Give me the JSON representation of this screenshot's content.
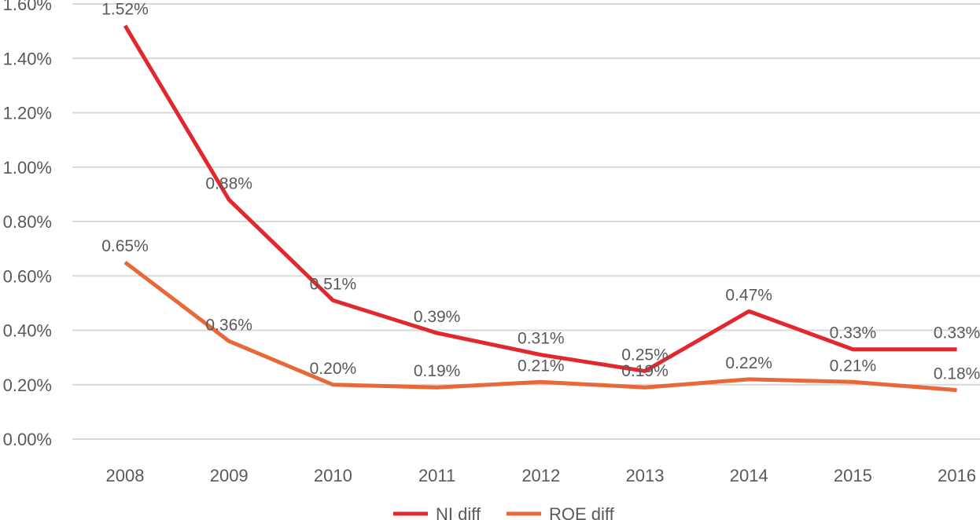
{
  "chart_data": {
    "type": "line",
    "categories": [
      "2008",
      "2009",
      "2010",
      "2011",
      "2012",
      "2013",
      "2014",
      "2015",
      "2016"
    ],
    "series": [
      {
        "name": "NI diff",
        "color": "#e0282e",
        "values": [
          1.52,
          0.88,
          0.51,
          0.39,
          0.31,
          0.25,
          0.47,
          0.33,
          0.33
        ],
        "labels": [
          "1.52%",
          "0.88%",
          "0.51%",
          "0.39%",
          "0.31%",
          "0.25%",
          "0.47%",
          "0.33%",
          "0.33%"
        ]
      },
      {
        "name": "ROE diff",
        "color": "#e8683a",
        "values": [
          0.65,
          0.36,
          0.2,
          0.19,
          0.21,
          0.19,
          0.22,
          0.21,
          0.18
        ],
        "labels": [
          "0.65%",
          "0.36%",
          "0.20%",
          "0.19%",
          "0.21%",
          "0.19%",
          "0.22%",
          "0.21%",
          "0.18%"
        ]
      }
    ],
    "ylim": [
      0,
      1.6
    ],
    "yticks": [
      0,
      0.2,
      0.4,
      0.6,
      0.8,
      1.0,
      1.2,
      1.4,
      1.6
    ],
    "ytick_labels": [
      "0.00%",
      "0.20%",
      "0.40%",
      "0.60%",
      "0.80%",
      "1.00%",
      "1.20%",
      "1.40%",
      "1.60%"
    ],
    "title": "",
    "xlabel": "",
    "ylabel": "",
    "grid": true,
    "legend_position": "bottom"
  }
}
